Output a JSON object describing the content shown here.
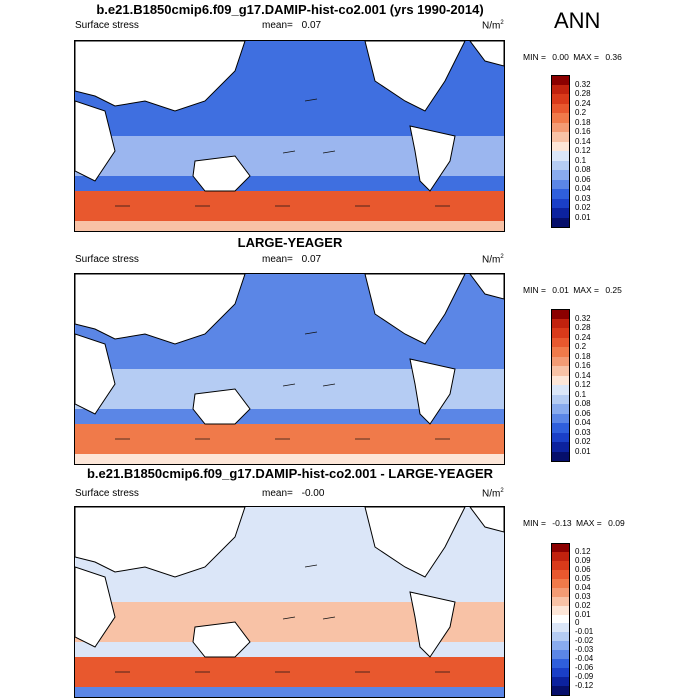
{
  "season": "ANN",
  "panels": [
    {
      "title": "b.e21.B1850cmip6.f09_g17.DAMIP-hist-co2.001 (yrs 1990-2014)",
      "variable": "Surface stress",
      "mean_label": "mean=",
      "mean_value": "0.07",
      "units": "N/m",
      "units_exp": "2",
      "min_label": "MIN =",
      "min_value": "0.00",
      "max_label": "MAX =",
      "max_value": "0.36",
      "colorbar": {
        "labels": [
          "0.32",
          "0.28",
          "0.24",
          "0.2",
          "0.18",
          "0.16",
          "0.14",
          "0.12",
          "0.1",
          "0.08",
          "0.06",
          "0.04",
          "0.03",
          "0.02",
          "0.01"
        ],
        "colors": [
          "#8b0000",
          "#c1220e",
          "#d93a1a",
          "#e8582e",
          "#f07a4a",
          "#f39b74",
          "#f8c2a6",
          "#fde6d8",
          "#dbe6f8",
          "#b5ccf3",
          "#89abee",
          "#5b86e6",
          "#2f5fdc",
          "#1a3fc7",
          "#0c229e",
          "#060f6b"
        ]
      }
    },
    {
      "title": "LARGE-YEAGER",
      "variable": "Surface stress",
      "mean_label": "mean=",
      "mean_value": "0.07",
      "units": "N/m",
      "units_exp": "2",
      "min_label": "MIN =",
      "min_value": "0.01",
      "max_label": "MAX =",
      "max_value": "0.25",
      "colorbar": {
        "labels": [
          "0.32",
          "0.28",
          "0.24",
          "0.2",
          "0.18",
          "0.16",
          "0.14",
          "0.12",
          "0.1",
          "0.08",
          "0.06",
          "0.04",
          "0.03",
          "0.02",
          "0.01"
        ],
        "colors": [
          "#8b0000",
          "#c1220e",
          "#d93a1a",
          "#e8582e",
          "#f07a4a",
          "#f39b74",
          "#f8c2a6",
          "#fde6d8",
          "#dbe6f8",
          "#b5ccf3",
          "#89abee",
          "#5b86e6",
          "#2f5fdc",
          "#1a3fc7",
          "#0c229e",
          "#060f6b"
        ]
      }
    },
    {
      "title": "b.e21.B1850cmip6.f09_g17.DAMIP-hist-co2.001 - LARGE-YEAGER",
      "variable": "Surface stress",
      "mean_label": "mean=",
      "mean_value": "-0.00",
      "units": "N/m",
      "units_exp": "2",
      "min_label": "MIN =",
      "min_value": "-0.13",
      "max_label": "MAX =",
      "max_value": "0.09",
      "colorbar": {
        "labels": [
          "0.12",
          "0.09",
          "0.06",
          "0.05",
          "0.04",
          "0.03",
          "0.02",
          "0.01",
          "0",
          "-0.01",
          "-0.02",
          "-0.03",
          "-0.04",
          "-0.06",
          "-0.09",
          "-0.12"
        ],
        "colors": [
          "#8b0000",
          "#c1220e",
          "#d93a1a",
          "#e8582e",
          "#f07a4a",
          "#f39b74",
          "#f8c2a6",
          "#fde6d8",
          "#ffffff",
          "#dbe6f8",
          "#b5ccf3",
          "#89abee",
          "#5b86e6",
          "#2f5fdc",
          "#1a3fc7",
          "#0c229e",
          "#060f6b"
        ]
      }
    }
  ]
}
